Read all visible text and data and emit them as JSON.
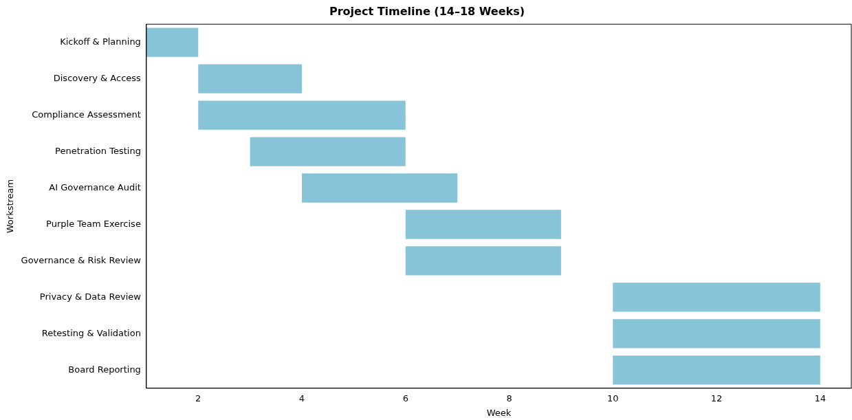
{
  "chart_data": {
    "type": "bar",
    "orientation": "horizontal",
    "title": "Project Timeline (14–18 Weeks)",
    "xlabel": "Week",
    "ylabel": "Workstream",
    "categories": [
      "Kickoff & Planning",
      "Discovery & Access",
      "Compliance Assessment",
      "Penetration Testing",
      "AI Governance Audit",
      "Purple Team Exercise",
      "Governance & Risk Review",
      "Privacy & Data Review",
      "Retesting & Validation",
      "Board Reporting"
    ],
    "base": [
      1,
      2,
      2,
      3,
      4,
      6,
      6,
      10,
      10,
      10
    ],
    "values": [
      1,
      2,
      4,
      3,
      3,
      3,
      3,
      4,
      4,
      4
    ],
    "color": "#87c4d7",
    "xlim": [
      1,
      14.6
    ],
    "xticks": [
      2,
      4,
      6,
      8,
      10,
      12,
      14
    ],
    "grid": false,
    "legend": false
  }
}
